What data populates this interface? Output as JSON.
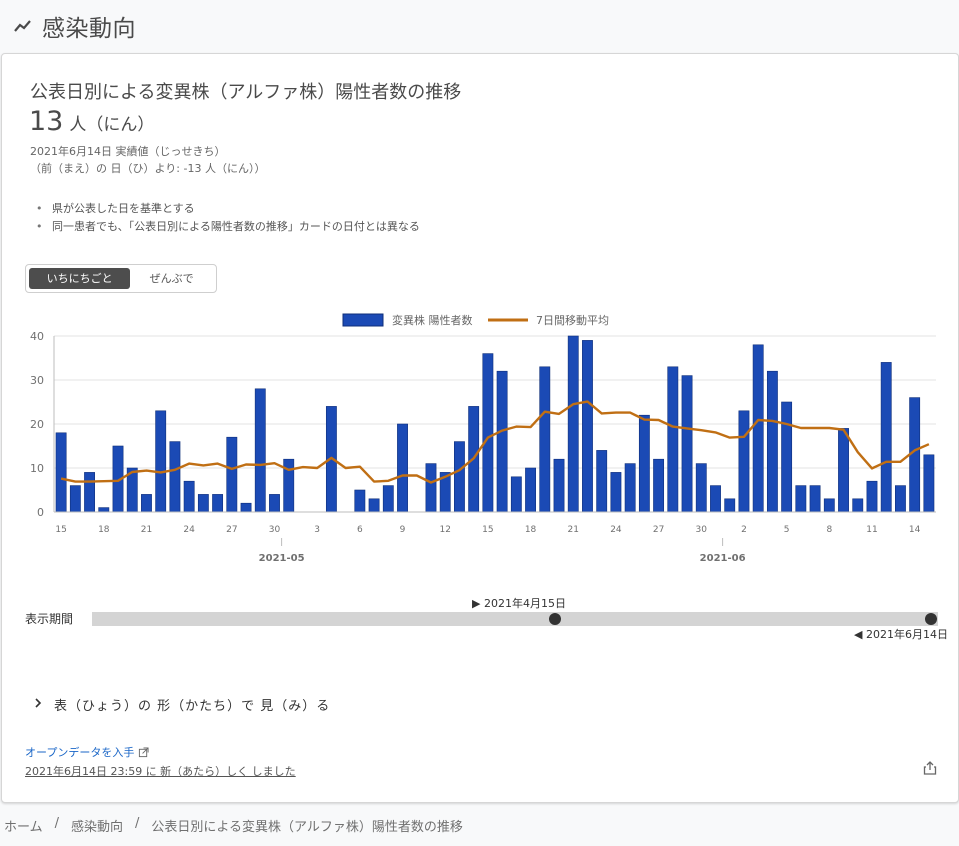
{
  "page": {
    "title": "感染動向",
    "breadcrumb": [
      "ホーム",
      "感染動向",
      "公表日別による変異株（アルファ株）陽性者数の推移"
    ]
  },
  "card": {
    "title": "公表日別による変異株（アルファ株）陽性者数の推移",
    "value": "13",
    "unit": "人（にん）",
    "date_line": "2021年6月14日 実績値（じっせきち）",
    "diff_line": "（前（まえ）の 日（ひ）より: -13 人（にん））",
    "notes": [
      "県が公表した日を基準とする",
      "同一患者でも、「公表日別による陽性者数の推移」カードの日付とは異なる"
    ],
    "toggle": {
      "daily": "いちにちごと",
      "cumulative": "ぜんぶで"
    },
    "period_label": "表示期間",
    "slider_start": "▶ 2021年4月15日",
    "slider_end": "◀ 2021年6月14日",
    "table_toggle": "表（ひょう）の 形（かたち）で 見（み）る",
    "open_data": "オープンデータを入手",
    "updated": "2021年6月14日 23:59 に 新（あたら）しく しました"
  },
  "chart_data": {
    "type": "bar",
    "x_tick_labels": [
      "15",
      "18",
      "21",
      "24",
      "27",
      "30",
      "3",
      "6",
      "9",
      "12",
      "15",
      "18",
      "21",
      "24",
      "27",
      "30",
      "2",
      "5",
      "8",
      "11",
      "14"
    ],
    "month_labels": [
      "2021-05",
      "2021-06"
    ],
    "ylim": [
      0,
      40
    ],
    "y_ticks": [
      "0",
      "10",
      "20",
      "30",
      "40"
    ],
    "legend": [
      "変異株 陽性者数",
      "7日間移動平均"
    ],
    "colors": {
      "bar": "#1b4ab5",
      "line": "#c06f14"
    },
    "grid": true,
    "series": [
      {
        "name": "変異株 陽性者数",
        "type": "bar",
        "values": [
          18,
          6,
          9,
          1,
          15,
          10,
          4,
          23,
          16,
          7,
          4,
          4,
          17,
          2,
          28,
          4,
          12,
          0,
          0,
          24,
          0,
          5,
          3,
          6,
          20,
          0,
          11,
          9,
          16,
          24,
          36,
          32,
          8,
          10,
          33,
          12,
          40,
          39,
          14,
          9,
          11,
          22,
          12,
          33,
          31,
          11,
          6,
          3,
          23,
          38,
          32,
          25,
          6,
          6,
          3,
          19,
          3,
          7,
          34,
          6,
          26,
          13
        ]
      },
      {
        "name": "7日間移動平均",
        "type": "line",
        "values": [
          7.6,
          6.9,
          6.9,
          7.0,
          7.1,
          9.1,
          9.4,
          9.0,
          9.6,
          11.0,
          10.6,
          11.0,
          9.8,
          10.8,
          10.7,
          11.1,
          9.6,
          10.2,
          10.0,
          12.3,
          10.0,
          10.3,
          6.9,
          7.1,
          8.3,
          8.3,
          6.7,
          8.0,
          9.5,
          12.2,
          16.9,
          18.5,
          19.4,
          19.3,
          22.8,
          22.3,
          24.5,
          25.1,
          22.4,
          22.6,
          22.6,
          21.0,
          20.9,
          19.4,
          19.0,
          18.6,
          18.1,
          16.9,
          17.1,
          20.9,
          20.7,
          20.0,
          19.1,
          19.1,
          19.1,
          18.7,
          13.6,
          9.9,
          11.4,
          11.4,
          14.0,
          15.4
        ]
      }
    ]
  }
}
